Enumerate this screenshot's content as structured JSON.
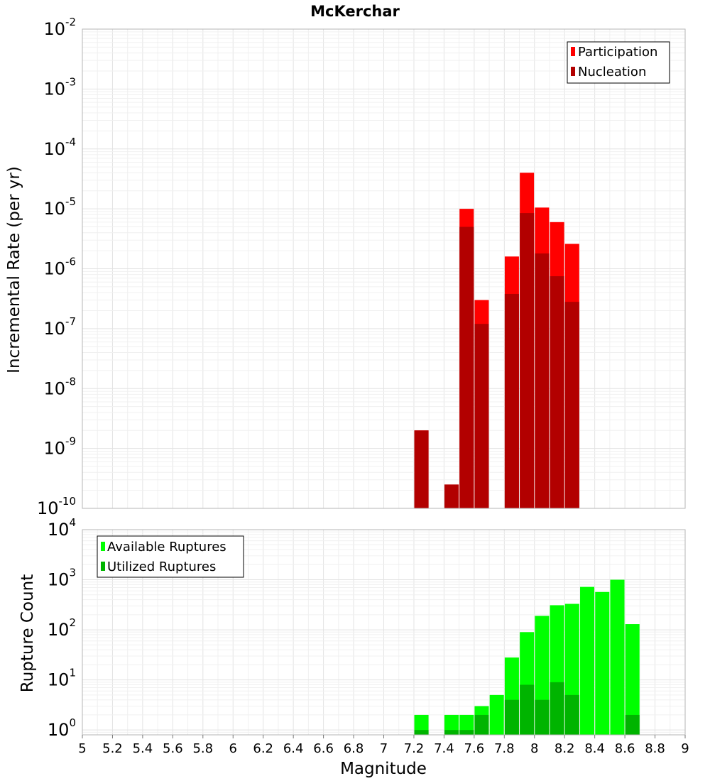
{
  "chart_data": [
    {
      "type": "bar",
      "title": "McKerchar",
      "ylabel": "Incremental Rate (per yr)",
      "yscale": "log",
      "ylim": [
        1e-10,
        0.01
      ],
      "x_bin_width": 0.1,
      "x": [
        7.25,
        7.45,
        7.55,
        7.65,
        7.85,
        7.95,
        8.05,
        8.15,
        8.25
      ],
      "series": [
        {
          "name": "Participation",
          "color": "#ff0000",
          "values": [
            2e-09,
            2.5e-10,
            1e-05,
            3e-07,
            1.6e-06,
            4e-05,
            1.05e-05,
            6e-06,
            2.6e-06
          ]
        },
        {
          "name": "Nucleation",
          "color": "#b20000",
          "values": [
            2e-09,
            2.5e-10,
            5e-06,
            1.2e-07,
            3.8e-07,
            8.5e-06,
            1.8e-06,
            7.5e-07,
            2.8e-07
          ]
        }
      ],
      "legend": "top-right",
      "grid": true
    },
    {
      "type": "bar",
      "ylabel": "Rupture Count",
      "xlabel": "Magnitude",
      "yscale": "log",
      "ylim": [
        0.8,
        10000
      ],
      "ytick_exponents": [
        0,
        1,
        2,
        3,
        4
      ],
      "xlim": [
        5,
        9
      ],
      "xticks": [
        "5",
        "5.2",
        "5.4",
        "5.6",
        "5.8",
        "6",
        "6.2",
        "6.4",
        "6.6",
        "6.8",
        "7",
        "7.2",
        "7.4",
        "7.6",
        "7.8",
        "8",
        "8.2",
        "8.4",
        "8.6",
        "8.8",
        "9"
      ],
      "x_bin_width": 0.1,
      "x": [
        7.25,
        7.45,
        7.55,
        7.65,
        7.75,
        7.85,
        7.95,
        8.05,
        8.15,
        8.25,
        8.35,
        8.45,
        8.55,
        8.65
      ],
      "series": [
        {
          "name": "Available Ruptures",
          "color": "#00ff00",
          "values": [
            2,
            2,
            2,
            3,
            5,
            28,
            90,
            190,
            310,
            330,
            720,
            570,
            1000,
            130
          ]
        },
        {
          "name": "Utilized Ruptures",
          "color": "#00b400",
          "values": [
            1,
            1,
            1,
            2,
            0,
            4,
            8,
            4,
            9,
            5,
            0,
            0,
            0,
            2
          ]
        }
      ],
      "legend": "top-left",
      "grid": true
    }
  ]
}
